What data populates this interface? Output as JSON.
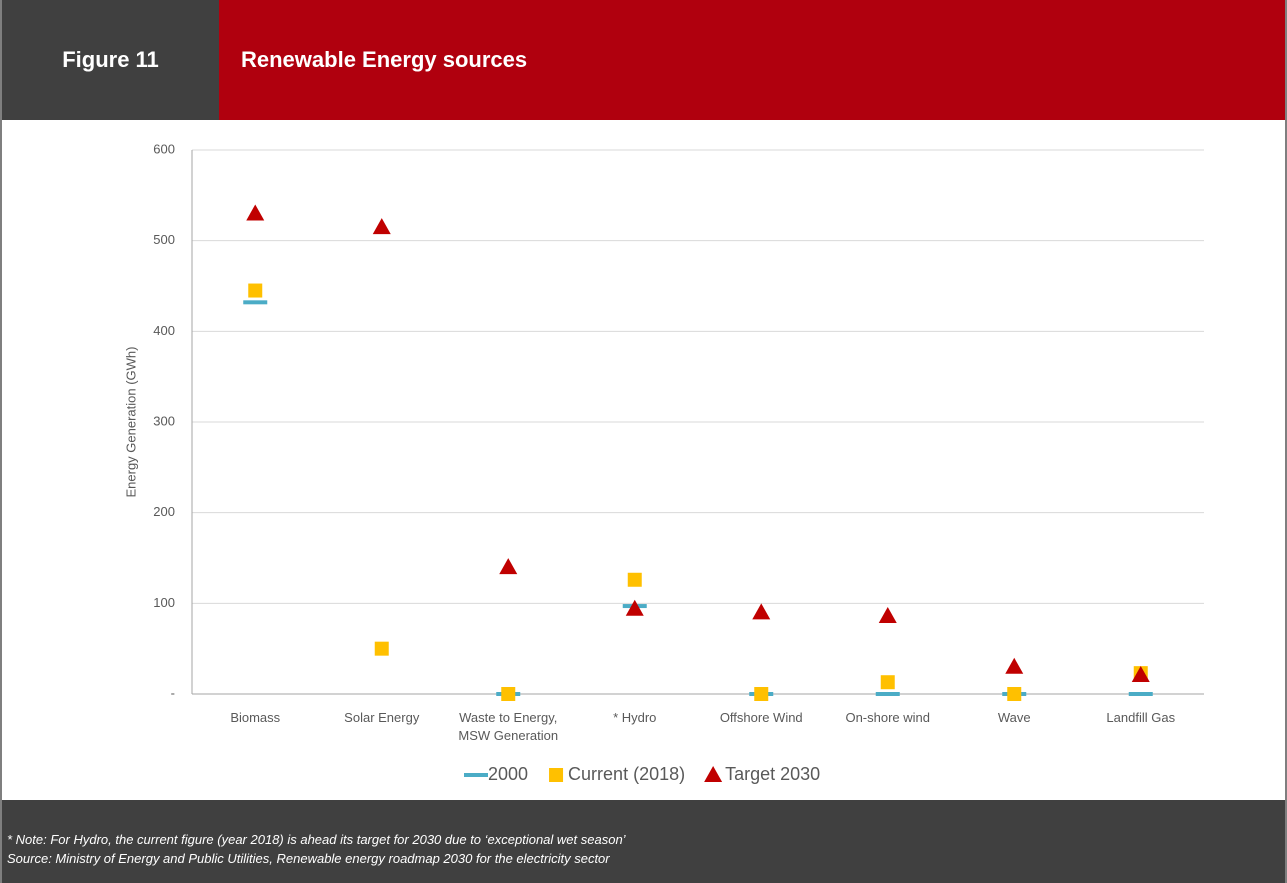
{
  "figure_label": "Figure 11",
  "chart_data": {
    "type": "scatter",
    "title": "Renewable Energy sources",
    "ylabel": "Energy Generation (GWh)",
    "categories": [
      "Biomass",
      "Solar Energy",
      "Waste to Energy, MSW Generation",
      "* Hydro",
      "Offshore Wind",
      "On-shore wind",
      "Wave",
      "Landfill Gas"
    ],
    "series": [
      {
        "name": "2000",
        "color": "#4bacc6",
        "marker": "dash",
        "values": [
          432,
          null,
          0,
          97,
          0,
          0,
          0,
          0
        ]
      },
      {
        "name": "Current (2018)",
        "color": "#ffc000",
        "marker": "square",
        "values": [
          445,
          50,
          0,
          126,
          0,
          13,
          0,
          23
        ]
      },
      {
        "name": "Target 2030",
        "color": "#c00000",
        "marker": "triangle",
        "values": [
          530,
          515,
          140,
          94,
          90,
          86,
          30,
          21
        ]
      }
    ],
    "ylim": [
      0,
      600
    ],
    "yticks": [
      {
        "value": 0,
        "label": "-"
      },
      100,
      200,
      300,
      400,
      500,
      600
    ],
    "grid": true,
    "legend": "bottom"
  },
  "footer": {
    "note": "* Note: For Hydro, the current figure (year 2018) is ahead its target for 2030 due to ‘exceptional wet season’",
    "source": "Source:  Ministry of Energy and Public Utilities, Renewable energy roadmap 2030 for the electricity sector"
  }
}
